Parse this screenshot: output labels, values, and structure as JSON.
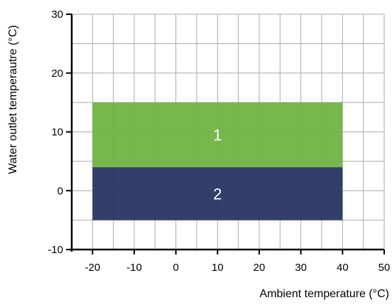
{
  "chart_data": {
    "type": "area",
    "title": "",
    "xlabel": "Ambient temperature (°C)",
    "ylabel": "Water outlet temperautre (°C)",
    "xlim": [
      -25,
      50
    ],
    "ylim": [
      -10,
      30
    ],
    "x_ticks": [
      -20,
      -10,
      0,
      10,
      20,
      30,
      40,
      50
    ],
    "y_ticks": [
      -10,
      0,
      10,
      20,
      30
    ],
    "grid": true,
    "minor_grid_step_x": 5,
    "minor_grid_step_y": 5,
    "regions": [
      {
        "label": "1",
        "x_range": [
          -20,
          40
        ],
        "y_range": [
          4,
          15
        ],
        "color": "#6db33f"
      },
      {
        "label": "2",
        "x_range": [
          -20,
          40
        ],
        "y_range": [
          -5,
          4
        ],
        "color": "#22305e"
      }
    ]
  }
}
